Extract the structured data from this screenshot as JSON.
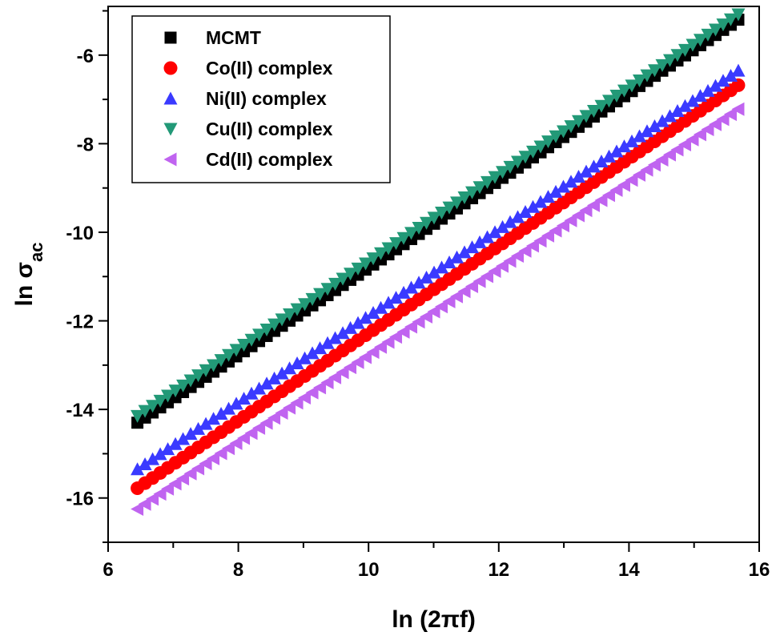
{
  "chart_data": {
    "type": "scatter",
    "xlabel": "ln (2πf)",
    "ylabel_main": "ln σ",
    "ylabel_sub": "ac",
    "xlim": [
      6,
      16
    ],
    "ylim": [
      -17,
      -4.9
    ],
    "xticks": [
      6,
      8,
      10,
      12,
      14,
      16
    ],
    "yticks": [
      -6,
      -8,
      -10,
      -12,
      -14,
      -16
    ],
    "x_minor_step": 1,
    "y_minor_step": 1,
    "grid": false,
    "legend_position": "top-left",
    "x_start": 6.45,
    "x_end": 15.68,
    "points_per_series": 80,
    "series": [
      {
        "name": "MCMT",
        "marker": "square",
        "color": "#000000",
        "line_color": "#000000",
        "y_start": -14.3,
        "y_end": -5.2
      },
      {
        "name": "Co(II) complex",
        "marker": "circle",
        "color": "#ff0000",
        "line_color": "#ff0000",
        "y_start": -15.78,
        "y_end": -6.68
      },
      {
        "name": "Ni(II) complex",
        "marker": "triangle-up",
        "color": "#3a3aff",
        "line_color": "#3a3aff",
        "y_start": -15.35,
        "y_end": -6.35
      },
      {
        "name": "Cu(II) complex",
        "marker": "triangle-down",
        "color": "#229977",
        "line_color": "#229977",
        "y_start": -14.15,
        "y_end": -5.08
      },
      {
        "name": "Cd(II) complex",
        "marker": "triangle-left",
        "color": "#c064f0",
        "line_color": "#c064f0",
        "y_start": -16.25,
        "y_end": -7.22
      }
    ]
  }
}
